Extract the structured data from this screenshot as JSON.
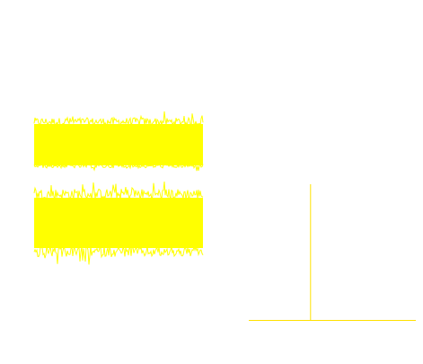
{
  "colors": {
    "background": "#ffffff",
    "signal": "#ffff00",
    "axis": "#ffe000"
  },
  "waveform": {
    "channels": [
      {
        "channel": "upper"
      },
      {
        "channel": "lower"
      }
    ]
  },
  "spectrum": {
    "peak_count": 1,
    "peak_relative_position": 0.37
  }
}
